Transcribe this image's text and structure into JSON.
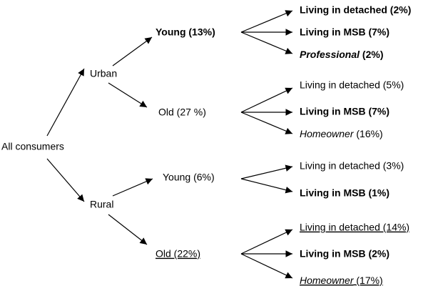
{
  "root": {
    "label": "All consumers"
  },
  "branches": [
    {
      "label": "Urban",
      "children": [
        {
          "label": "Young (13%)",
          "leaves": [
            {
              "label": "Living in detached (2%)"
            },
            {
              "label": "Living in MSB (7%)"
            },
            {
              "label": "Professional",
              "suffix": "(2%)"
            }
          ]
        },
        {
          "label": "Old (27 %)",
          "leaves": [
            {
              "label": "Living in detached (5%)"
            },
            {
              "label": "Living in MSB (7%)"
            },
            {
              "label": "Homeowner",
              "suffix": "(16%)"
            }
          ]
        }
      ]
    },
    {
      "label": "Rural",
      "children": [
        {
          "label": "Young (6%)",
          "leaves": [
            {
              "label": "Living in detached (3%)"
            },
            {
              "label": "Living in MSB (1%)"
            }
          ]
        },
        {
          "label": "Old (22%)",
          "leaves": [
            {
              "label": "Living in detached (14%)"
            },
            {
              "label": "Living in MSB (2%)"
            },
            {
              "label": "Homeowner",
              "suffix": "(17%)"
            }
          ]
        }
      ]
    }
  ]
}
